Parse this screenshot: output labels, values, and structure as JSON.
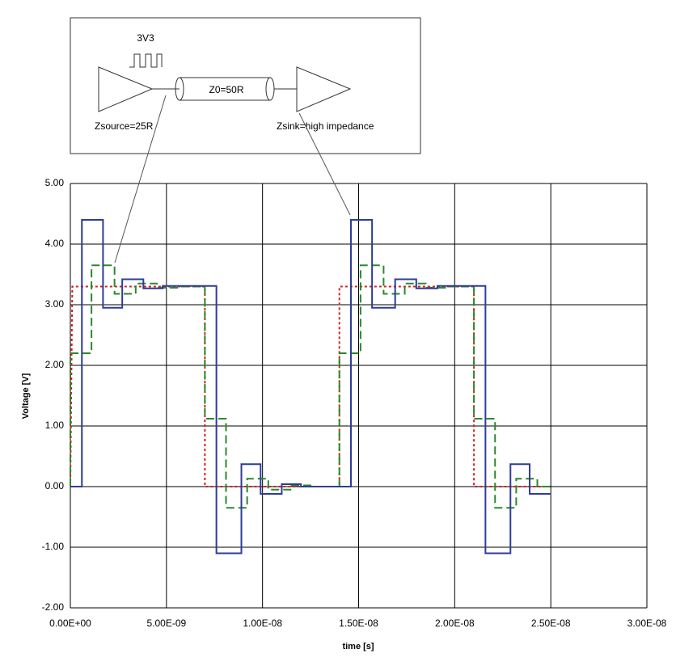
{
  "chart_data": {
    "type": "line",
    "y_label": "Voltage [V]",
    "x_label": "time [s]",
    "xlim": [
      0,
      3e-08
    ],
    "xticks": [
      {
        "value": 0,
        "label": "0.00E+00"
      },
      {
        "value": 5e-09,
        "label": "5.00E-09"
      },
      {
        "value": 1e-08,
        "label": "1.00E-08"
      },
      {
        "value": 1.5e-08,
        "label": "1.50E-08"
      },
      {
        "value": 2e-08,
        "label": "2.00E-08"
      },
      {
        "value": 2.5e-08,
        "label": "2.50E-08"
      },
      {
        "value": 3e-08,
        "label": "3.00E-08"
      }
    ],
    "ylim": [
      -2,
      5
    ],
    "yticks": [
      {
        "value": -2,
        "label": "-2.00"
      },
      {
        "value": -1,
        "label": "-1.00"
      },
      {
        "value": 0,
        "label": "0.00"
      },
      {
        "value": 1,
        "label": "1.00"
      },
      {
        "value": 2,
        "label": "2.00"
      },
      {
        "value": 3,
        "label": "3.00"
      },
      {
        "value": 4,
        "label": "4.00"
      },
      {
        "value": 5,
        "label": "5.00"
      }
    ],
    "grid": true,
    "series": [
      {
        "color": "#d42020",
        "line_style": "dotted",
        "x": [
          0,
          1e-10,
          7e-09,
          7e-09,
          1.4e-08,
          1.4e-08,
          2.1e-08,
          2.1e-08,
          2.5e-08
        ],
        "values": [
          0,
          3.3,
          3.3,
          0,
          0,
          3.3,
          3.3,
          0,
          0
        ]
      },
      {
        "color": "#2a8a2a",
        "line_style": "dashed",
        "x": [
          0,
          0,
          1.1e-09,
          1.1e-09,
          2.3e-09,
          2.3e-09,
          3.4e-09,
          3.4e-09,
          4.5e-09,
          4.5e-09,
          5.7e-09,
          5.7e-09,
          7e-09,
          7e-09,
          8.1e-09,
          8.1e-09,
          9.2e-09,
          9.2e-09,
          1.03e-08,
          1.03e-08,
          1.15e-08,
          1.15e-08,
          1.26e-08,
          1.26e-08,
          1.4e-08,
          1.4e-08,
          1.51e-08,
          1.51e-08,
          1.63e-08,
          1.63e-08,
          1.74e-08,
          1.74e-08,
          1.85e-08,
          1.85e-08,
          1.97e-08,
          1.97e-08,
          2.1e-08,
          2.1e-08,
          2.21e-08,
          2.21e-08,
          2.32e-08,
          2.32e-08,
          2.43e-08,
          2.43e-08,
          2.5e-08
        ],
        "values": [
          0,
          2.2,
          2.2,
          3.65,
          3.65,
          3.18,
          3.18,
          3.35,
          3.35,
          3.28,
          3.28,
          3.3,
          3.3,
          1.12,
          1.12,
          -0.35,
          -0.35,
          0.13,
          0.13,
          -0.05,
          -0.05,
          0.02,
          0.02,
          0,
          0,
          2.2,
          2.2,
          3.65,
          3.65,
          3.18,
          3.18,
          3.35,
          3.35,
          3.28,
          3.28,
          3.3,
          3.3,
          1.12,
          1.12,
          -0.35,
          -0.35,
          0.13,
          0.13,
          0,
          0
        ]
      },
      {
        "color": "#2e3c96",
        "line_style": "solid",
        "x": [
          0,
          6e-10,
          6e-10,
          1.7e-09,
          1.7e-09,
          2.7e-09,
          2.7e-09,
          3.8e-09,
          3.8e-09,
          4.8e-09,
          4.8e-09,
          7.6e-09,
          7.6e-09,
          8.9e-09,
          8.9e-09,
          9.9e-09,
          9.9e-09,
          1.1e-08,
          1.1e-08,
          1.2e-08,
          1.2e-08,
          1.46e-08,
          1.46e-08,
          1.57e-08,
          1.57e-08,
          1.69e-08,
          1.69e-08,
          1.8e-08,
          1.8e-08,
          1.91e-08,
          1.91e-08,
          2.16e-08,
          2.16e-08,
          2.29e-08,
          2.29e-08,
          2.39e-08,
          2.39e-08,
          2.5e-08
        ],
        "values": [
          0,
          0,
          4.4,
          4.4,
          2.95,
          2.95,
          3.42,
          3.42,
          3.27,
          3.27,
          3.31,
          3.31,
          -1.1,
          -1.1,
          0.37,
          0.37,
          -0.12,
          -0.12,
          0.04,
          0.04,
          0,
          0,
          4.4,
          4.4,
          2.95,
          2.95,
          3.42,
          3.42,
          3.27,
          3.27,
          3.31,
          3.31,
          -1.1,
          -1.1,
          0.37,
          0.37,
          -0.12,
          -0.12
        ]
      }
    ]
  },
  "diagram": {
    "supply_label": "3V3",
    "line_label": "Z0=50R",
    "source_label": "Zsource=25R",
    "sink_label": "Zsink=high impedance"
  }
}
